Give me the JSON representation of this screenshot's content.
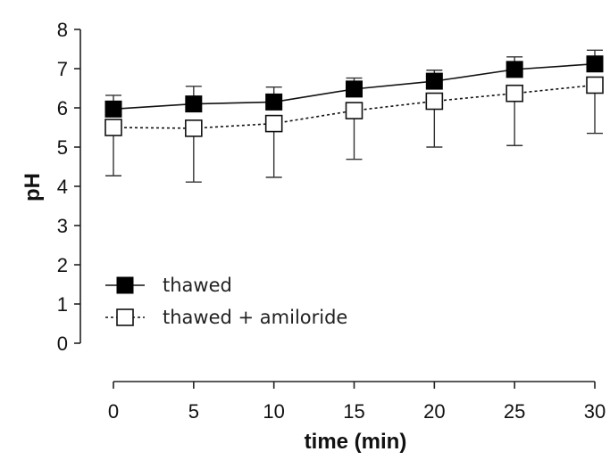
{
  "chart_data": {
    "type": "line",
    "xlabel": "time (min)",
    "ylabel": "pH",
    "x": [
      0,
      5,
      10,
      15,
      20,
      25,
      30
    ],
    "xlim": [
      0,
      30
    ],
    "ylim": [
      0,
      8
    ],
    "xticks": [
      0,
      5,
      10,
      15,
      20,
      25,
      30
    ],
    "yticks": [
      0,
      1,
      2,
      3,
      4,
      5,
      6,
      7,
      8
    ],
    "grid": false,
    "legend_position": "bottom-left",
    "series": [
      {
        "name": "thawed",
        "marker": "filled-square",
        "line": "solid",
        "color": "#000000",
        "values": [
          5.97,
          6.1,
          6.15,
          6.48,
          6.68,
          6.98,
          7.12
        ],
        "error": [
          0.35,
          0.45,
          0.38,
          0.28,
          0.28,
          0.32,
          0.35
        ]
      },
      {
        "name": "thawed + amiloride",
        "marker": "open-square",
        "line": "dotted",
        "color": "#000000",
        "values": [
          5.5,
          5.48,
          5.6,
          5.93,
          6.17,
          6.37,
          6.58
        ],
        "error": [
          1.23,
          1.37,
          1.37,
          1.24,
          1.17,
          1.33,
          1.23
        ]
      }
    ]
  }
}
